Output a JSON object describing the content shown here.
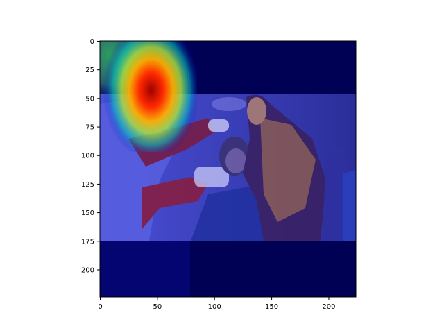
{
  "image_panel": {
    "description_icon": "heatmap-overlay-image",
    "colormap": "jet"
  },
  "chart_data": {
    "type": "heatmap",
    "title": "",
    "xlabel": "",
    "ylabel": "",
    "xlim": [
      0,
      224
    ],
    "ylim": [
      224,
      0
    ],
    "x_ticks": [
      0,
      50,
      100,
      150,
      200
    ],
    "y_ticks": [
      0,
      25,
      50,
      75,
      100,
      125,
      150,
      175,
      200
    ],
    "x_tick_labels": [
      "0",
      "50",
      "100",
      "150",
      "200"
    ],
    "y_tick_labels": [
      "0",
      "25",
      "50",
      "75",
      "100",
      "125",
      "150",
      "175",
      "200"
    ],
    "grid": false,
    "photo_band_rows": [
      47,
      175
    ],
    "hotspot": {
      "x": 45,
      "y": 45,
      "peak": "red"
    }
  }
}
